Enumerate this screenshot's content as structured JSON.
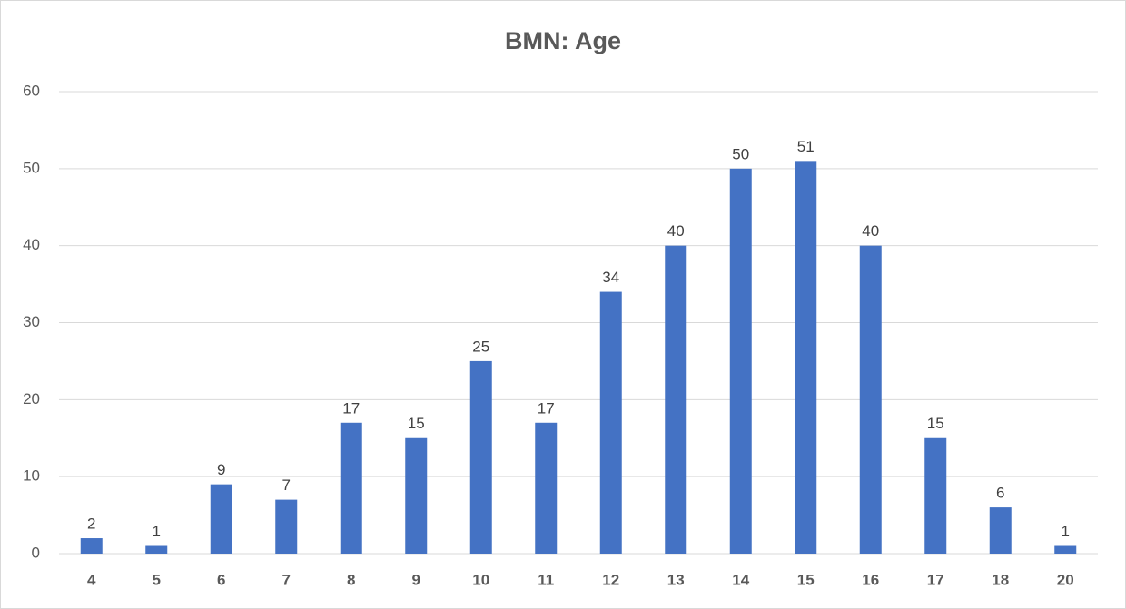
{
  "chart_data": {
    "type": "bar",
    "title": "BMN: Age",
    "categories": [
      "4",
      "5",
      "6",
      "7",
      "8",
      "9",
      "10",
      "11",
      "12",
      "13",
      "14",
      "15",
      "16",
      "17",
      "18",
      "20"
    ],
    "values": [
      2,
      1,
      9,
      7,
      17,
      15,
      25,
      17,
      34,
      40,
      50,
      51,
      40,
      15,
      6,
      1
    ],
    "color": "#4472c4",
    "ylim": [
      0,
      60
    ],
    "yticks": [
      0,
      10,
      20,
      30,
      40,
      50,
      60
    ],
    "grid": true
  }
}
